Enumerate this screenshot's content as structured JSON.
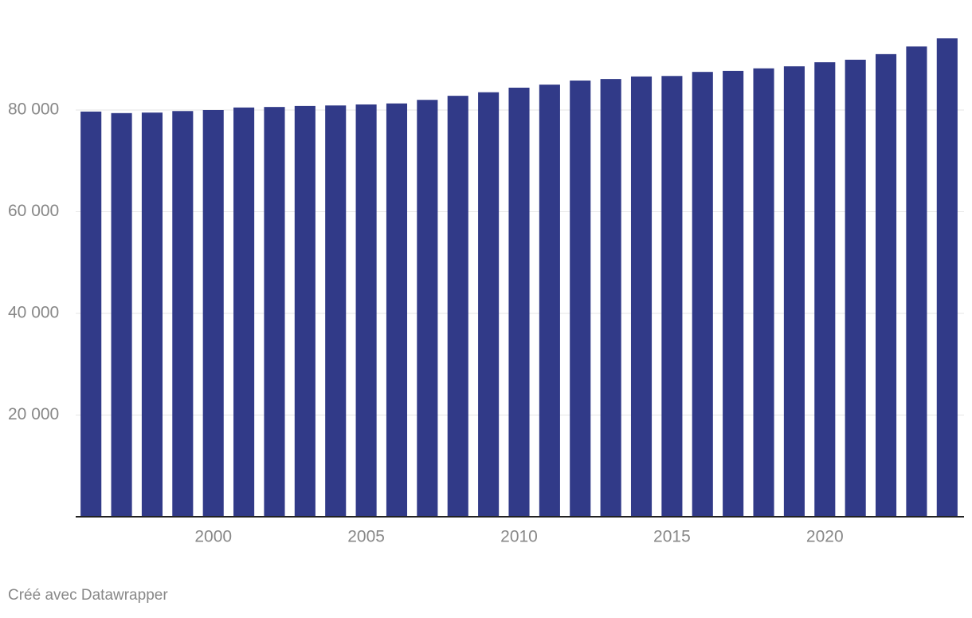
{
  "chart_data": {
    "type": "bar",
    "x": [
      1996,
      1997,
      1998,
      1999,
      2000,
      2001,
      2002,
      2003,
      2004,
      2005,
      2006,
      2007,
      2008,
      2009,
      2010,
      2011,
      2012,
      2013,
      2014,
      2015,
      2016,
      2017,
      2018,
      2019,
      2020,
      2021,
      2022,
      2023,
      2024
    ],
    "values": [
      79700,
      79400,
      79500,
      79800,
      80000,
      80500,
      80600,
      80800,
      80900,
      81100,
      81300,
      82000,
      82800,
      83500,
      84400,
      85000,
      85800,
      86100,
      86600,
      86700,
      87500,
      87700,
      88200,
      88600,
      89400,
      89900,
      91000,
      92500,
      94100
    ],
    "color": "#313a88",
    "xlim": [
      1995.5,
      2024.5
    ],
    "xticks": [
      2000,
      2005,
      2010,
      2015,
      2020
    ],
    "ylim": [
      0,
      100000
    ],
    "yticks": [
      {
        "value": 20000,
        "label": "20 000"
      },
      {
        "value": 40000,
        "label": "40 000"
      },
      {
        "value": 60000,
        "label": "60 000"
      },
      {
        "value": 80000,
        "label": "80 000"
      }
    ],
    "grid": true,
    "credit": "Créé avec Datawrapper"
  }
}
